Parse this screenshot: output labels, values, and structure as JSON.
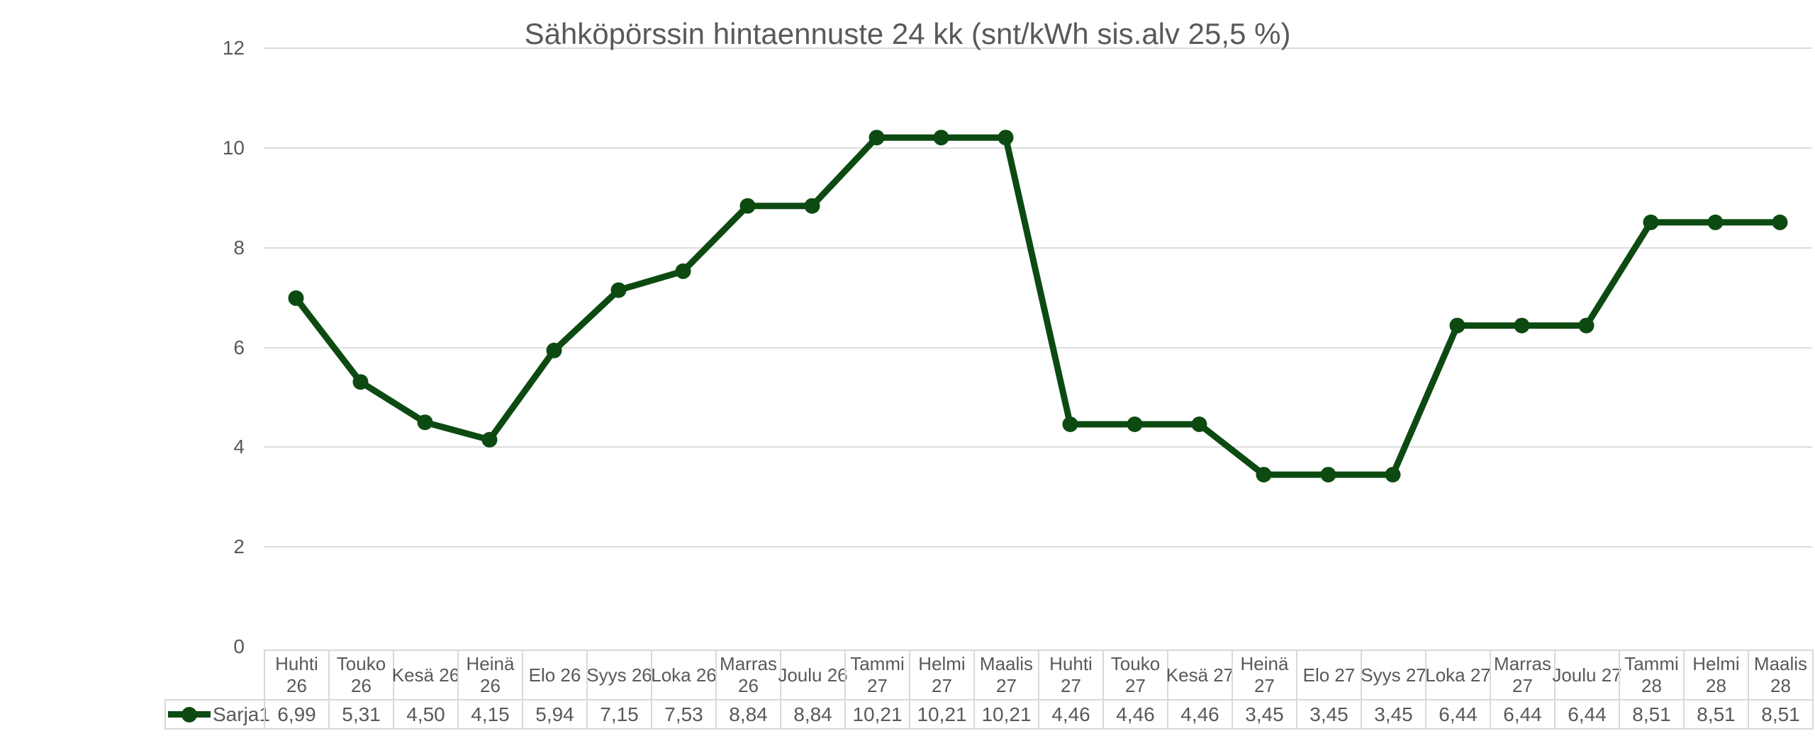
{
  "chart_data": {
    "type": "line",
    "title": "Sähköpörssin hintaennuste 24 kk (snt/kWh sis.alv 25,5 %)",
    "categories": [
      "Huhti 26",
      "Touko 26",
      "Kesä 26",
      "Heinä 26",
      "Elo 26",
      "Syys 26",
      "Loka 26",
      "Marras 26",
      "Joulu 26",
      "Tammi 27",
      "Helmi 27",
      "Maalis 27",
      "Huhti 27",
      "Touko 27",
      "Kesä 27",
      "Heinä 27",
      "Elo 27",
      "Syys 27",
      "Loka 27",
      "Marras 27",
      "Joulu 27",
      "Tammi 28",
      "Helmi 28",
      "Maalis 28"
    ],
    "categories_display": [
      "Huhti\n26",
      "Touko\n26",
      "Kesä 26",
      "Heinä\n26",
      "Elo 26",
      "Syys 26",
      "Loka 26",
      "Marras\n26",
      "Joulu 26",
      "Tammi\n27",
      "Helmi\n27",
      "Maalis\n27",
      "Huhti\n27",
      "Touko\n27",
      "Kesä 27",
      "Heinä\n27",
      "Elo 27",
      "Syys 27",
      "Loka 27",
      "Marras\n27",
      "Joulu 27",
      "Tammi\n28",
      "Helmi\n28",
      "Maalis\n28"
    ],
    "series": [
      {
        "name": "Sarja1",
        "values": [
          6.99,
          5.31,
          4.5,
          4.15,
          5.94,
          7.15,
          7.53,
          8.84,
          8.84,
          10.21,
          10.21,
          10.21,
          4.46,
          4.46,
          4.46,
          3.45,
          3.45,
          3.45,
          6.44,
          6.44,
          6.44,
          8.51,
          8.51,
          8.51
        ]
      }
    ],
    "values_display": [
      "6,99",
      "5,31",
      "4,50",
      "4,15",
      "5,94",
      "7,15",
      "7,53",
      "8,84",
      "8,84",
      "10,21",
      "10,21",
      "10,21",
      "4,46",
      "4,46",
      "4,46",
      "3,45",
      "3,45",
      "3,45",
      "6,44",
      "6,44",
      "6,44",
      "8,51",
      "8,51",
      "8,51"
    ],
    "xlabel": "",
    "ylabel": "",
    "ylim": [
      0,
      12
    ],
    "yticks": [
      0,
      2,
      4,
      6,
      8,
      10,
      12
    ],
    "yticks_display": [
      "0",
      "2",
      "4",
      "6",
      "8",
      "10",
      "12"
    ],
    "grid": "horizontal-only",
    "legend_position": "left-of-data-table-row",
    "data_table_shown": true,
    "marker": "circle"
  },
  "colors": {
    "series": "#0c4a12",
    "text": "#595959",
    "gridline": "#dcdcdc",
    "table_border": "#d9d9d9",
    "background": "#ffffff"
  }
}
